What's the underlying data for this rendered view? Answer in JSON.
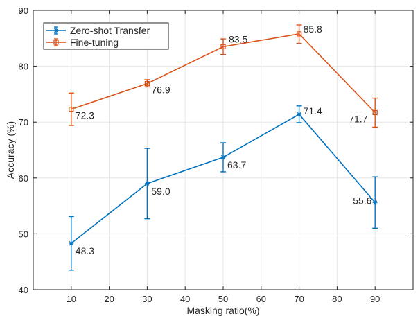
{
  "chart_data": {
    "type": "line",
    "title": "",
    "xlabel": "Masking ratio(%)",
    "ylabel": "Accuracy (%)",
    "xlim": [
      0,
      100
    ],
    "ylim": [
      40,
      90
    ],
    "xticks": [
      10,
      20,
      30,
      40,
      50,
      60,
      70,
      80,
      90
    ],
    "yticks": [
      40,
      50,
      60,
      70,
      80,
      90
    ],
    "grid": true,
    "legend_position": "top-left",
    "x": [
      10,
      30,
      50,
      70,
      90
    ],
    "series": [
      {
        "name": "Zero-shot Transfer",
        "color": "#0072BD",
        "marker": "star",
        "values": [
          48.3,
          59.0,
          63.7,
          71.4,
          55.6
        ],
        "error_low": [
          43.5,
          52.7,
          61.1,
          69.9,
          51.0
        ],
        "error_high": [
          53.1,
          65.3,
          66.3,
          72.9,
          60.2
        ],
        "labels": [
          "48.3",
          "59.0",
          "63.7",
          "71.4",
          "55.6"
        ]
      },
      {
        "name": "Fine-tuning",
        "color": "#D95319",
        "marker": "square",
        "values": [
          72.3,
          76.9,
          83.5,
          85.8,
          71.7
        ],
        "error_low": [
          69.4,
          76.3,
          82.1,
          84.1,
          69.1
        ],
        "error_high": [
          75.2,
          77.6,
          84.9,
          87.4,
          74.3
        ],
        "labels": [
          "72.3",
          "76.9",
          "83.5",
          "85.8",
          "71.7"
        ]
      }
    ]
  }
}
